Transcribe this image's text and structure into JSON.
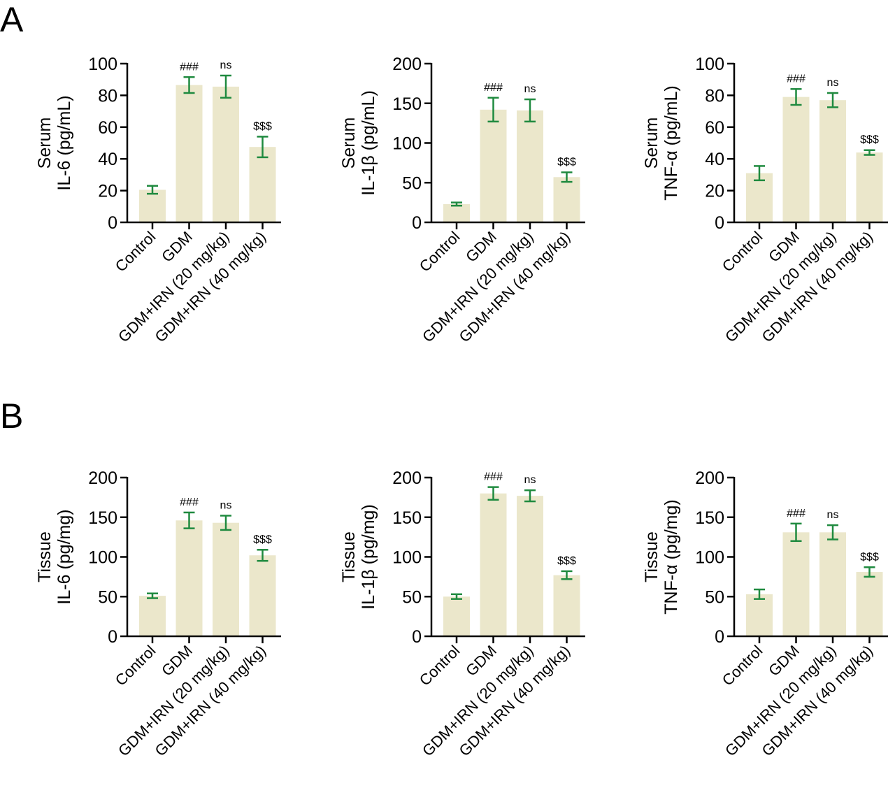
{
  "panel_labels": [
    "A",
    "B"
  ],
  "colors": {
    "bar": "#ebe7cb",
    "error": "#1f8a3f",
    "axis": "#000000"
  },
  "chart_data": [
    {
      "type": "bar",
      "panel": "A",
      "ylabel": [
        "Serum",
        "IL-6 (pg/mL)"
      ],
      "ylim": [
        0,
        100
      ],
      "yticks": [
        0,
        20,
        40,
        60,
        80,
        100
      ],
      "categories": [
        "Control",
        "GDM",
        "GDM+IRN (20 mg/kg)",
        "GDM+IRN (40 mg/kg)"
      ],
      "values": [
        20.5,
        86.5,
        85.5,
        47.5
      ],
      "errors": [
        2.5,
        5,
        7,
        6.5
      ],
      "annotations": [
        "",
        "###",
        "ns",
        "$$$"
      ]
    },
    {
      "type": "bar",
      "panel": "A",
      "ylabel": [
        "Serum",
        "IL-1β (pg/mL)"
      ],
      "ylim": [
        0,
        200
      ],
      "yticks": [
        0,
        50,
        100,
        150,
        200
      ],
      "categories": [
        "Control",
        "GDM",
        "GDM+IRN (20 mg/kg)",
        "GDM+IRN (40 mg/kg)"
      ],
      "values": [
        23,
        142,
        141,
        57
      ],
      "errors": [
        2,
        15,
        14,
        6
      ],
      "annotations": [
        "",
        "###",
        "ns",
        "$$$"
      ]
    },
    {
      "type": "bar",
      "panel": "A",
      "ylabel": [
        "Serum",
        "TNF-α (pg/mL)"
      ],
      "ylim": [
        0,
        100
      ],
      "yticks": [
        0,
        20,
        40,
        60,
        80,
        100
      ],
      "categories": [
        "Control",
        "GDM",
        "GDM+IRN (20 mg/kg)",
        "GDM+IRN (40 mg/kg)"
      ],
      "values": [
        31,
        79,
        77,
        44
      ],
      "errors": [
        4.5,
        5,
        4.5,
        1.5
      ],
      "annotations": [
        "",
        "###",
        "ns",
        "$$$"
      ]
    },
    {
      "type": "bar",
      "panel": "B",
      "ylabel": [
        "Tissue",
        "IL-6 (pg/mg)"
      ],
      "ylim": [
        0,
        200
      ],
      "yticks": [
        0,
        50,
        100,
        150,
        200
      ],
      "categories": [
        "Control",
        "GDM",
        "GDM+IRN (20 mg/kg)",
        "GDM+IRN (40 mg/kg)"
      ],
      "values": [
        51,
        146,
        143,
        102
      ],
      "errors": [
        3,
        10,
        9,
        7
      ],
      "annotations": [
        "",
        "###",
        "ns",
        "$$$"
      ]
    },
    {
      "type": "bar",
      "panel": "B",
      "ylabel": [
        "Tissue",
        "IL-1β (pg/mg)"
      ],
      "ylim": [
        0,
        200
      ],
      "yticks": [
        0,
        50,
        100,
        150,
        200
      ],
      "categories": [
        "Control",
        "GDM",
        "GDM+IRN (20 mg/kg)",
        "GDM+IRN (40 mg/kg)"
      ],
      "values": [
        50,
        180,
        177,
        77
      ],
      "errors": [
        3,
        8,
        7,
        5
      ],
      "annotations": [
        "",
        "###",
        "ns",
        "$$$"
      ]
    },
    {
      "type": "bar",
      "panel": "B",
      "ylabel": [
        "Tissue",
        "TNF-α (pg/mg)"
      ],
      "ylim": [
        0,
        200
      ],
      "yticks": [
        0,
        50,
        100,
        150,
        200
      ],
      "categories": [
        "Control",
        "GDM",
        "GDM+IRN (20 mg/kg)",
        "GDM+IRN (40 mg/kg)"
      ],
      "values": [
        53,
        131,
        131,
        81
      ],
      "errors": [
        6,
        11,
        9,
        6
      ],
      "annotations": [
        "",
        "###",
        "ns",
        "$$$"
      ]
    }
  ]
}
